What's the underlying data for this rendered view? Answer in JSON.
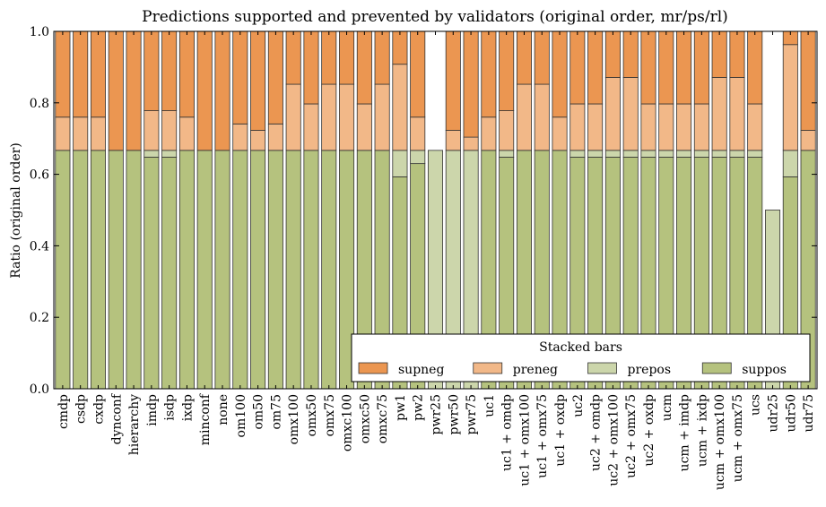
{
  "chart_data": {
    "type": "bar",
    "stacked": true,
    "title": "Predictions supported and prevented by validators (original order, mr/ps/rl)",
    "xlabel": "",
    "ylabel": "Ratio (original order)",
    "ylim": [
      0,
      1
    ],
    "yticks": [
      "0.0",
      "0.2",
      "0.4",
      "0.6",
      "0.8",
      "1.0"
    ],
    "grid": false,
    "legend": {
      "title": "Stacked bars",
      "placement": "lower-right",
      "order": [
        "supneg",
        "preneg",
        "prepos",
        "suppos"
      ]
    },
    "categories": [
      "cmdp",
      "csdp",
      "cxdp",
      "dynconf",
      "hierarchy",
      "imdp",
      "isdp",
      "ixdp",
      "minconf",
      "none",
      "om100",
      "om50",
      "om75",
      "omx100",
      "omx50",
      "omx75",
      "omxc100",
      "omxc50",
      "omxc75",
      "pw1",
      "pw2",
      "pwr25",
      "pwr50",
      "pwr75",
      "uc1",
      "uc1 + omdp",
      "uc1 + omx100",
      "uc1 + omx75",
      "uc1 + oxdp",
      "uc2",
      "uc2 + omdp",
      "uc2 + omx100",
      "uc2 + omx75",
      "uc2 + oxdp",
      "ucm",
      "ucm + imdp",
      "ucm + ixdp",
      "ucm + omx100",
      "ucm + omx75",
      "ucs",
      "udr25",
      "udr50",
      "udr75"
    ],
    "series": [
      {
        "name": "suppos",
        "color": "#b5c27e",
        "values": [
          0.667,
          0.667,
          0.667,
          0.667,
          0.667,
          0.648,
          0.648,
          0.667,
          0.667,
          0.667,
          0.667,
          0.667,
          0.667,
          0.667,
          0.667,
          0.667,
          0.667,
          0.667,
          0.667,
          0.593,
          0.63,
          0,
          0,
          0,
          0.667,
          0.648,
          0.667,
          0.667,
          0.667,
          0.648,
          0.648,
          0.648,
          0.648,
          0.648,
          0.648,
          0.648,
          0.648,
          0.648,
          0.648,
          0.648,
          0,
          0.593,
          0.667
        ]
      },
      {
        "name": "prepos",
        "color": "#ccd6ab",
        "values": [
          0,
          0,
          0,
          0,
          0,
          0.019,
          0.019,
          0,
          0,
          0,
          0,
          0,
          0,
          0,
          0,
          0,
          0,
          0,
          0,
          0.074,
          0.037,
          0.667,
          0.667,
          0.667,
          0,
          0.019,
          0,
          0,
          0,
          0.019,
          0.019,
          0.019,
          0.019,
          0.019,
          0.019,
          0.019,
          0.019,
          0.019,
          0.019,
          0.019,
          0.5,
          0.074,
          0
        ]
      },
      {
        "name": "preneg",
        "color": "#f2b888",
        "values": [
          0.093,
          0.093,
          0.093,
          0,
          0,
          0.111,
          0.111,
          0.093,
          0,
          0,
          0.074,
          0.056,
          0.074,
          0.185,
          0.13,
          0.185,
          0.185,
          0.13,
          0.185,
          0.241,
          0.093,
          0,
          0.056,
          0.037,
          0.093,
          0.111,
          0.185,
          0.185,
          0.093,
          0.13,
          0.13,
          0.204,
          0.204,
          0.13,
          0.13,
          0.13,
          0.13,
          0.204,
          0.204,
          0.13,
          0,
          0.296,
          0.056
        ]
      },
      {
        "name": "supneg",
        "color": "#eb9651",
        "values": [
          0.24,
          0.24,
          0.24,
          0.333,
          0.333,
          0.222,
          0.222,
          0.24,
          0.333,
          0.333,
          0.259,
          0.277,
          0.259,
          0.148,
          0.203,
          0.148,
          0.148,
          0.203,
          0.148,
          0.092,
          0.24,
          0,
          0.277,
          0.296,
          0.24,
          0.222,
          0.148,
          0.148,
          0.24,
          0.203,
          0.203,
          0.129,
          0.129,
          0.203,
          0.203,
          0.203,
          0.203,
          0.129,
          0.129,
          0.203,
          0,
          0.037,
          0.277
        ]
      }
    ]
  }
}
